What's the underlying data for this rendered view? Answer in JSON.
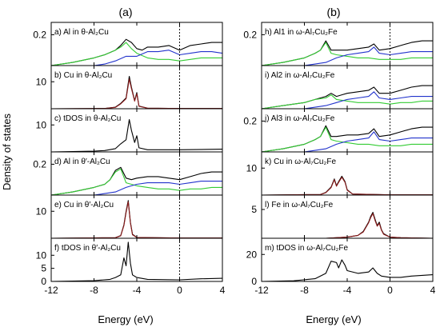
{
  "figure": {
    "column_labels": [
      "(a)",
      "(b)"
    ],
    "ylabel": "Density of states",
    "xlabel": "Energy (eV)"
  },
  "colors": {
    "total": "#000000",
    "s": "#33cc33",
    "p": "#2233cc",
    "d": "#8b1a1a"
  },
  "chart_data": [
    {
      "id": "a",
      "title": "a) Al in θ-Al₂Cu",
      "type": "line",
      "xlim": [
        -12,
        4
      ],
      "ylim": [
        0,
        0.28
      ],
      "yticks": [
        0.2
      ],
      "ytick_labels": [
        "0.2"
      ],
      "series": [
        {
          "role": "total",
          "x": [
            -12,
            -10,
            -8,
            -7,
            -6,
            -5.5,
            -5,
            -4.5,
            -4,
            -3.5,
            -3,
            -2,
            -1,
            0,
            1,
            2,
            3,
            4
          ],
          "y": [
            0,
            0.02,
            0.05,
            0.07,
            0.1,
            0.13,
            0.17,
            0.15,
            0.11,
            0.1,
            0.12,
            0.12,
            0.13,
            0.1,
            0.13,
            0.14,
            0.15,
            0.15
          ]
        },
        {
          "role": "s",
          "x": [
            -12,
            -10,
            -8,
            -7,
            -6,
            -5.5,
            -5,
            -4.5,
            -4,
            -3,
            -2,
            -1,
            0,
            1,
            2,
            3,
            4
          ],
          "y": [
            0,
            0.02,
            0.05,
            0.07,
            0.1,
            0.12,
            0.15,
            0.11,
            0.08,
            0.05,
            0.04,
            0.04,
            0.03,
            0.04,
            0.05,
            0.05,
            0.05
          ]
        },
        {
          "role": "p",
          "x": [
            -12,
            -8,
            -7,
            -6,
            -5,
            -4.5,
            -4,
            -3,
            -2,
            -1,
            0,
            1,
            2,
            3,
            4
          ],
          "y": [
            0,
            0,
            0.01,
            0.03,
            0.06,
            0.06,
            0.06,
            0.09,
            0.09,
            0.1,
            0.07,
            0.08,
            0.09,
            0.09,
            0.08
          ]
        }
      ]
    },
    {
      "id": "b",
      "title": "b) Cu in θ-Al₂Cu",
      "type": "line",
      "xlim": [
        -12,
        4
      ],
      "ylim": [
        0,
        16
      ],
      "yticks": [
        10
      ],
      "ytick_labels": [
        "10"
      ],
      "series": [
        {
          "role": "total",
          "x": [
            -12,
            -7,
            -6,
            -5.5,
            -5,
            -4.7,
            -4.5,
            -4.2,
            -4,
            -3.8,
            -3,
            0,
            4
          ],
          "y": [
            0,
            0.1,
            0.6,
            2,
            4,
            12,
            8,
            3,
            6,
            1,
            0.2,
            0.1,
            0.1
          ]
        },
        {
          "role": "d",
          "x": [
            -12,
            -7,
            -6,
            -5.5,
            -5,
            -4.7,
            -4.5,
            -4.2,
            -4,
            -3.8,
            -3,
            0,
            4
          ],
          "y": [
            0,
            0.1,
            0.5,
            1.8,
            3.7,
            11,
            7.5,
            2.8,
            5.5,
            0.9,
            0.2,
            0.1,
            0.1
          ]
        }
      ]
    },
    {
      "id": "c",
      "title": "c) tDOS in θ-Al₂Cu",
      "type": "line",
      "xlim": [
        -12,
        4
      ],
      "ylim": [
        0,
        16
      ],
      "yticks": [
        10
      ],
      "ytick_labels": [
        "10"
      ],
      "series": [
        {
          "role": "total",
          "x": [
            -12,
            -8,
            -7,
            -6,
            -5.5,
            -5,
            -4.7,
            -4.5,
            -4.2,
            -4,
            -3.8,
            -3,
            0,
            4
          ],
          "y": [
            0,
            0.3,
            0.5,
            1.2,
            3,
            4.5,
            12,
            8,
            3.5,
            6,
            1.5,
            0.8,
            0.8,
            1
          ]
        }
      ]
    },
    {
      "id": "d",
      "title": "d) Al in θ′-Al₂Cu",
      "type": "line",
      "xlim": [
        -12,
        4
      ],
      "ylim": [
        0,
        0.28
      ],
      "yticks": [
        0.2
      ],
      "ytick_labels": [
        "0.2"
      ],
      "series": [
        {
          "role": "total",
          "x": [
            -12,
            -10,
            -8,
            -7,
            -6.5,
            -6,
            -5.5,
            -5,
            -4.5,
            -4,
            -3,
            -2,
            -1,
            0,
            1,
            2,
            3,
            4
          ],
          "y": [
            0,
            0.02,
            0.05,
            0.07,
            0.1,
            0.16,
            0.18,
            0.11,
            0.1,
            0.11,
            0.12,
            0.12,
            0.11,
            0.1,
            0.12,
            0.14,
            0.15,
            0.15
          ]
        },
        {
          "role": "s",
          "x": [
            -12,
            -10,
            -8,
            -7,
            -6.5,
            -6,
            -5.5,
            -5,
            -4,
            -3,
            -2,
            -1,
            0,
            1,
            2,
            3,
            4
          ],
          "y": [
            0,
            0.02,
            0.05,
            0.07,
            0.1,
            0.15,
            0.17,
            0.08,
            0.06,
            0.05,
            0.04,
            0.04,
            0.03,
            0.04,
            0.04,
            0.05,
            0.05
          ]
        },
        {
          "role": "p",
          "x": [
            -12,
            -8,
            -7,
            -6,
            -5,
            -4.5,
            -4,
            -3,
            -2,
            -1,
            0,
            1,
            2,
            3,
            4
          ],
          "y": [
            0,
            0,
            0.01,
            0.02,
            0.05,
            0.06,
            0.07,
            0.08,
            0.08,
            0.08,
            0.07,
            0.08,
            0.09,
            0.09,
            0.09
          ]
        }
      ]
    },
    {
      "id": "e",
      "title": "e) Cu in θ′-Al₂Cu",
      "type": "line",
      "xlim": [
        -12,
        4
      ],
      "ylim": [
        0,
        16
      ],
      "yticks": [
        10
      ],
      "ytick_labels": [
        "10"
      ],
      "series": [
        {
          "role": "total",
          "x": [
            -12,
            -6,
            -5.5,
            -5.2,
            -5,
            -4.8,
            -4.6,
            -4.4,
            -4,
            0,
            4
          ],
          "y": [
            0,
            0.2,
            1,
            5,
            10,
            14,
            6,
            1.5,
            0.3,
            0.1,
            0.1
          ]
        },
        {
          "role": "d",
          "x": [
            -12,
            -6,
            -5.5,
            -5.2,
            -5,
            -4.8,
            -4.6,
            -4.4,
            -4,
            0,
            4
          ],
          "y": [
            0,
            0.2,
            0.9,
            4.7,
            9.5,
            13.5,
            5.7,
            1.3,
            0.3,
            0.1,
            0.1
          ]
        }
      ]
    },
    {
      "id": "f",
      "title": "f) tDOS in θ′-Al₂Cu",
      "type": "line",
      "xlim": [
        -12,
        4
      ],
      "ylim": [
        0,
        16.5
      ],
      "yticks": [
        0,
        5,
        10
      ],
      "ytick_labels": [
        "0",
        "5",
        "10"
      ],
      "series": [
        {
          "role": "total",
          "x": [
            -12,
            -8,
            -6.5,
            -6,
            -5.5,
            -5.2,
            -5,
            -4.8,
            -4.6,
            -4.4,
            -4,
            -3,
            0,
            2,
            4
          ],
          "y": [
            0,
            0.3,
            0.8,
            1.5,
            2.5,
            9,
            6,
            15,
            7,
            2.5,
            1.5,
            0.8,
            0.6,
            1,
            1.2
          ]
        }
      ]
    },
    {
      "id": "h",
      "title": "h) Al1 in ω-Al₇Cu₂Fe",
      "type": "line",
      "xlim": [
        -12,
        4
      ],
      "ylim": [
        0,
        0.28
      ],
      "yticks": [
        0.2
      ],
      "ytick_labels": [
        "0.2"
      ],
      "series": [
        {
          "role": "total",
          "x": [
            -12,
            -10,
            -8,
            -7,
            -6.5,
            -6,
            -5.5,
            -5,
            -4,
            -3,
            -2,
            -1.5,
            -1,
            0,
            1,
            2,
            3,
            4
          ],
          "y": [
            0,
            0.02,
            0.05,
            0.08,
            0.1,
            0.16,
            0.1,
            0.1,
            0.1,
            0.11,
            0.12,
            0.14,
            0.1,
            0.11,
            0.13,
            0.15,
            0.16,
            0.16
          ]
        },
        {
          "role": "s",
          "x": [
            -12,
            -10,
            -8,
            -7,
            -6.5,
            -6,
            -5.5,
            -5,
            -4,
            -3,
            -2,
            -1,
            0,
            1,
            2,
            3,
            4
          ],
          "y": [
            0,
            0.02,
            0.05,
            0.08,
            0.1,
            0.15,
            0.08,
            0.07,
            0.06,
            0.05,
            0.05,
            0.04,
            0.04,
            0.04,
            0.05,
            0.05,
            0.05
          ]
        },
        {
          "role": "p",
          "x": [
            -12,
            -8,
            -7,
            -6,
            -5,
            -4,
            -3,
            -2,
            -1.5,
            -1,
            0,
            1,
            2,
            3,
            4
          ],
          "y": [
            0,
            0,
            0.01,
            0.02,
            0.05,
            0.07,
            0.08,
            0.09,
            0.12,
            0.08,
            0.07,
            0.08,
            0.09,
            0.09,
            0.09
          ]
        }
      ]
    },
    {
      "id": "i",
      "title": "i) Al2 in ω-Al₇Cu₂Fe",
      "type": "line",
      "xlim": [
        -12,
        4
      ],
      "ylim": [
        0,
        0.28
      ],
      "yticks": [],
      "ytick_labels": [],
      "series": [
        {
          "role": "total",
          "x": [
            -12,
            -10,
            -8,
            -7,
            -6,
            -5.5,
            -5,
            -4.5,
            -4,
            -3,
            -2,
            -1.5,
            -1,
            0,
            1,
            2,
            3,
            4
          ],
          "y": [
            0,
            0.02,
            0.04,
            0.06,
            0.08,
            0.1,
            0.08,
            0.09,
            0.1,
            0.11,
            0.12,
            0.14,
            0.1,
            0.1,
            0.12,
            0.14,
            0.15,
            0.15
          ]
        },
        {
          "role": "s",
          "x": [
            -12,
            -10,
            -8,
            -7,
            -6,
            -5.5,
            -5,
            -4,
            -3,
            -2,
            -1,
            0,
            1,
            2,
            3,
            4
          ],
          "y": [
            0,
            0.02,
            0.04,
            0.06,
            0.07,
            0.09,
            0.06,
            0.05,
            0.04,
            0.04,
            0.04,
            0.03,
            0.04,
            0.04,
            0.05,
            0.05
          ]
        },
        {
          "role": "p",
          "x": [
            -12,
            -8,
            -7,
            -6,
            -5,
            -4,
            -3,
            -2,
            -1.5,
            -1,
            0,
            1,
            2,
            3,
            4
          ],
          "y": [
            0,
            0,
            0.01,
            0.02,
            0.04,
            0.06,
            0.07,
            0.08,
            0.11,
            0.07,
            0.06,
            0.07,
            0.08,
            0.08,
            0.08
          ]
        }
      ]
    },
    {
      "id": "j",
      "title": "j) Al3 in ω-Al₇Cu₂Fe",
      "type": "line",
      "xlim": [
        -12,
        4
      ],
      "ylim": [
        0,
        0.28
      ],
      "yticks": [
        0.2
      ],
      "ytick_labels": [
        "0.2"
      ],
      "series": [
        {
          "role": "total",
          "x": [
            -12,
            -10,
            -8,
            -7,
            -6.5,
            -6,
            -5.5,
            -5,
            -4,
            -3,
            -2,
            -1.5,
            -1,
            0,
            1,
            2,
            3,
            4
          ],
          "y": [
            0,
            0.02,
            0.05,
            0.08,
            0.1,
            0.17,
            0.1,
            0.1,
            0.11,
            0.11,
            0.12,
            0.15,
            0.1,
            0.11,
            0.13,
            0.15,
            0.16,
            0.16
          ]
        },
        {
          "role": "s",
          "x": [
            -12,
            -10,
            -8,
            -7,
            -6.5,
            -6,
            -5.5,
            -5,
            -4,
            -3,
            -2,
            -1,
            0,
            1,
            2,
            3,
            4
          ],
          "y": [
            0,
            0.02,
            0.05,
            0.08,
            0.1,
            0.16,
            0.08,
            0.07,
            0.06,
            0.05,
            0.05,
            0.04,
            0.04,
            0.04,
            0.05,
            0.05,
            0.05
          ]
        },
        {
          "role": "p",
          "x": [
            -12,
            -8,
            -7,
            -6,
            -5,
            -4,
            -3,
            -2,
            -1.5,
            -1,
            0,
            1,
            2,
            3,
            4
          ],
          "y": [
            0,
            0,
            0.01,
            0.02,
            0.05,
            0.07,
            0.08,
            0.09,
            0.13,
            0.08,
            0.07,
            0.08,
            0.09,
            0.09,
            0.09
          ]
        }
      ]
    },
    {
      "id": "k",
      "title": "k) Cu in ω-Al₇Cu₂Fe",
      "type": "line",
      "xlim": [
        -12,
        4
      ],
      "ylim": [
        0,
        16
      ],
      "yticks": [
        10
      ],
      "ytick_labels": [
        "10"
      ],
      "series": [
        {
          "role": "total",
          "x": [
            -12,
            -6.5,
            -6,
            -5.5,
            -5.2,
            -5,
            -4.8,
            -4.5,
            -4.2,
            -4,
            -3.5,
            0,
            4
          ],
          "y": [
            0,
            0.2,
            1,
            3,
            6,
            3.5,
            5,
            7,
            5,
            2,
            0.4,
            0.1,
            0.1
          ]
        },
        {
          "role": "d",
          "x": [
            -12,
            -6.5,
            -6,
            -5.5,
            -5.2,
            -5,
            -4.8,
            -4.5,
            -4.2,
            -4,
            -3.5,
            0,
            4
          ],
          "y": [
            0,
            0.2,
            0.9,
            2.8,
            5.7,
            3.3,
            4.7,
            6.6,
            4.7,
            1.8,
            0.4,
            0.1,
            0.1
          ]
        }
      ]
    },
    {
      "id": "l",
      "title": "l) Fe in ω-Al₇Cu₂Fe",
      "type": "line",
      "xlim": [
        -12,
        4
      ],
      "ylim": [
        0,
        7.5
      ],
      "yticks": [
        5
      ],
      "ytick_labels": [
        "5"
      ],
      "series": [
        {
          "role": "total",
          "x": [
            -12,
            -6,
            -4,
            -3,
            -2.5,
            -2,
            -1.8,
            -1.6,
            -1.4,
            -1.2,
            -1,
            -0.8,
            -0.6,
            0,
            1,
            4
          ],
          "y": [
            0,
            0,
            0.2,
            0.5,
            1.2,
            2.8,
            3.8,
            4.5,
            3.3,
            2.2,
            2.8,
            1.5,
            0.8,
            0.2,
            0.1,
            0
          ]
        },
        {
          "role": "d",
          "x": [
            -12,
            -6,
            -4,
            -3,
            -2.5,
            -2,
            -1.8,
            -1.6,
            -1.4,
            -1.2,
            -1,
            -0.8,
            -0.6,
            0,
            1,
            4
          ],
          "y": [
            0,
            0,
            0.2,
            0.5,
            1.1,
            2.7,
            3.6,
            4.3,
            3.1,
            2.1,
            2.6,
            1.4,
            0.7,
            0.2,
            0.1,
            0
          ]
        }
      ]
    },
    {
      "id": "m",
      "title": "m) tDOS in ω-Al₇Cu₂Fe",
      "type": "line",
      "xlim": [
        -12,
        4
      ],
      "ylim": [
        0,
        32
      ],
      "yticks": [
        0,
        20
      ],
      "ytick_labels": [
        "0",
        "20"
      ],
      "series": [
        {
          "role": "total",
          "x": [
            -12,
            -9,
            -7,
            -6,
            -5.5,
            -5,
            -4.8,
            -4.5,
            -4.2,
            -4,
            -3,
            -2,
            -1.6,
            -1.2,
            -0.8,
            0,
            1,
            2,
            4
          ],
          "y": [
            0,
            0.5,
            2,
            6,
            15,
            14,
            10,
            16,
            12,
            8,
            6,
            7,
            10,
            6,
            4,
            3,
            3,
            4,
            5
          ]
        }
      ]
    }
  ]
}
